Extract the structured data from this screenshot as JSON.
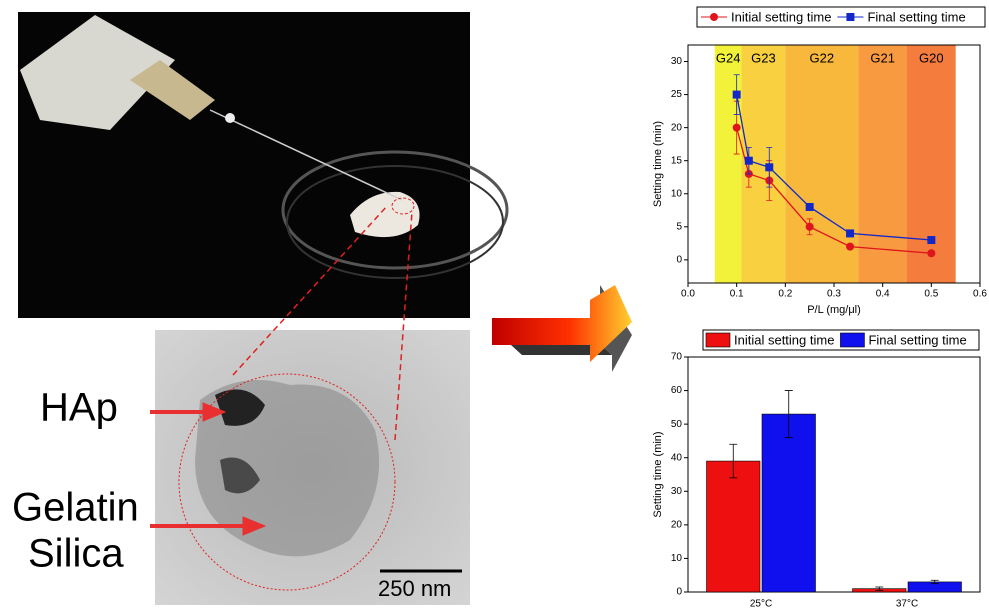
{
  "chart_data": [
    {
      "type": "line",
      "xlabel": "P/L (mg/μl)",
      "ylabel": "Setting time (min)",
      "x": [
        0.1,
        0.125,
        0.167,
        0.25,
        0.333,
        0.5
      ],
      "series": [
        {
          "name": "Initial setting time",
          "color": "#e0141c",
          "marker": "circle",
          "values": [
            20,
            13,
            12,
            5,
            2,
            1
          ],
          "errors": [
            4,
            2,
            3,
            1.2,
            0.3,
            0.3
          ]
        },
        {
          "name": "Final setting time",
          "color": "#1428c8",
          "marker": "square",
          "values": [
            25,
            15,
            14,
            8,
            4,
            3
          ],
          "errors": [
            3,
            2,
            3,
            0.5,
            0.3,
            0.3
          ]
        }
      ],
      "bands": [
        {
          "label": "G24",
          "xrange": [
            0.055,
            0.11
          ],
          "color": "#f2f23a"
        },
        {
          "label": "G23",
          "xrange": [
            0.11,
            0.2
          ],
          "color": "#f8d040"
        },
        {
          "label": "G22",
          "xrange": [
            0.2,
            0.35
          ],
          "color": "#f8b83c"
        },
        {
          "label": "G21",
          "xrange": [
            0.35,
            0.45
          ],
          "color": "#f89a40"
        },
        {
          "label": "G20",
          "xrange": [
            0.45,
            0.55
          ],
          "color": "#f47c3c"
        }
      ],
      "xlim": [
        0,
        0.6
      ],
      "xticks": [
        {
          "value": 0,
          "label": "0.0"
        },
        0.1,
        0.2,
        0.3,
        0.4,
        0.5,
        0.6
      ],
      "ylim": [
        -3.5,
        32.5
      ],
      "yticks": [
        0,
        5,
        10,
        15,
        20,
        25,
        30
      ]
    },
    {
      "type": "bar",
      "ylabel": "Setting time (min)",
      "categories": [
        "25°C",
        "37°C"
      ],
      "series": [
        {
          "name": "Initial setting time",
          "color": "#ee1010",
          "values": [
            39,
            1
          ],
          "errors": [
            5,
            0.5
          ]
        },
        {
          "name": "Final setting time",
          "color": "#1010ee",
          "values": [
            53,
            3
          ],
          "errors": [
            7,
            0.5
          ]
        }
      ],
      "ylim": [
        0,
        70
      ],
      "yticks": [
        0,
        10,
        20,
        30,
        40,
        50,
        60,
        70
      ]
    }
  ],
  "image_labels": {
    "particle": "HAp",
    "matrix_line1": "Gelatin",
    "matrix_line2": "Silica",
    "scale_bar": "250 nm"
  }
}
